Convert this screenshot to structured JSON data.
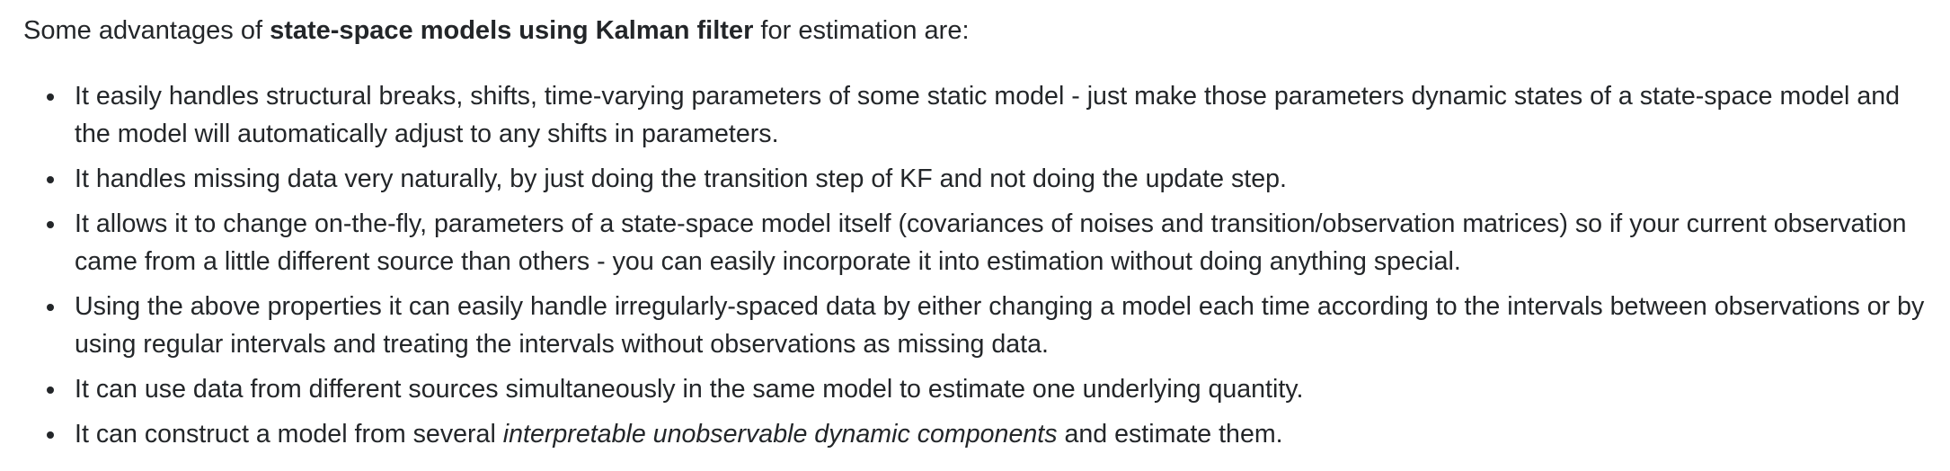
{
  "intro": {
    "before": "Some advantages of ",
    "bold": "state-space models using Kalman filter",
    "after": " for estimation are:"
  },
  "bullets": [
    {
      "text": "It easily handles structural breaks, shifts, time-varying parameters of some static model - just make those parameters dynamic states of a state-space model and the model will automatically adjust to any shifts in parameters."
    },
    {
      "text": "It handles missing data very naturally, by just doing the transition step of KF and not doing the update step."
    },
    {
      "text": "It allows it to change on-the-fly, parameters of a state-space model itself (covariances of noises and transition/observation matrices) so if your current observation came from a little different source than others - you can easily incorporate it into estimation without doing anything special."
    },
    {
      "text": "Using the above properties it can easily handle irregularly-spaced data by either changing a model each time according to the intervals between observations or by using regular intervals and treating the intervals without observations as missing data."
    },
    {
      "text": "It can use data from different sources simultaneously in the same model to estimate one underlying quantity."
    },
    {
      "before": "It can construct a model from several ",
      "italic": "interpretable unobservable dynamic components",
      "after": " and estimate them."
    }
  ]
}
